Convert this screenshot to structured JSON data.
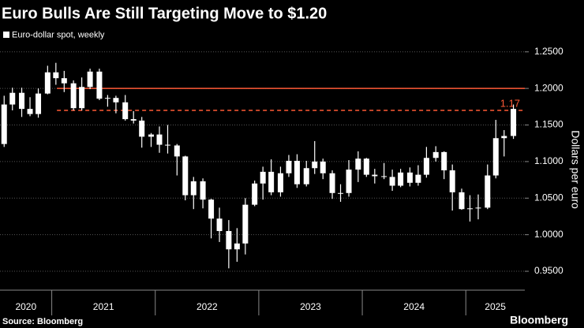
{
  "chart_data": {
    "type": "candlestick",
    "title": "Euro Bulls Are Still Targeting Move to $1.20",
    "legend": "Euro-dollar spot, weekly",
    "y_label": "Dollars per euro",
    "source": "Source: Bloomberg",
    "brand": "Bloomberg",
    "color": "#ffffff",
    "grid": true,
    "xlim": [
      2020.5,
      2025.57
    ],
    "xticks": [
      {
        "value": 2020,
        "label": "2020"
      },
      {
        "value": 2021,
        "label": "2021"
      },
      {
        "value": 2022,
        "label": "2022"
      },
      {
        "value": 2023,
        "label": "2023"
      },
      {
        "value": 2024,
        "label": "2024"
      },
      {
        "value": 2025,
        "label": "2025"
      }
    ],
    "ylim": [
      0.93,
      1.267
    ],
    "yticks": [
      {
        "value": 0.95,
        "label": "0.9500"
      },
      {
        "value": 1.0,
        "label": "1.0000"
      },
      {
        "value": 1.05,
        "label": "1.0500"
      },
      {
        "value": 1.1,
        "label": "1.1000"
      },
      {
        "value": 1.15,
        "label": "1.1500"
      },
      {
        "value": 1.2,
        "label": "1.2000"
      },
      {
        "value": 1.25,
        "label": "1.2500"
      }
    ],
    "reference_lines": [
      {
        "value": 1.2,
        "from": 2021.05,
        "style": "solid",
        "color": "#ff5a36"
      },
      {
        "value": 1.17,
        "from": 2021.05,
        "style": "dashed",
        "color": "#ff5a36",
        "label": "1.17"
      }
    ],
    "x": [
      2020.54,
      2020.62,
      2020.71,
      2020.79,
      2020.87,
      2020.96,
      2021.04,
      2021.12,
      2021.21,
      2021.29,
      2021.37,
      2021.46,
      2021.54,
      2021.62,
      2021.71,
      2021.79,
      2021.87,
      2021.96,
      2022.04,
      2022.12,
      2022.21,
      2022.29,
      2022.37,
      2022.46,
      2022.54,
      2022.62,
      2022.71,
      2022.79,
      2022.87,
      2022.96,
      2023.04,
      2023.12,
      2023.21,
      2023.29,
      2023.37,
      2023.46,
      2023.54,
      2023.62,
      2023.71,
      2023.79,
      2023.87,
      2023.96,
      2024.04,
      2024.12,
      2024.21,
      2024.29,
      2024.37,
      2024.46,
      2024.54,
      2024.62,
      2024.71,
      2024.79,
      2024.87,
      2024.96,
      2025.04,
      2025.12,
      2025.21,
      2025.29,
      2025.37,
      2025.46
    ],
    "open": [
      1.124,
      1.178,
      1.194,
      1.172,
      1.165,
      1.193,
      1.222,
      1.214,
      1.207,
      1.173,
      1.202,
      1.223,
      1.186,
      1.187,
      1.181,
      1.158,
      1.156,
      1.134,
      1.137,
      1.123,
      1.122,
      1.107,
      1.054,
      1.073,
      1.048,
      1.022,
      1.005,
      0.98,
      0.988,
      1.041,
      1.07,
      1.086,
      1.058,
      1.084,
      1.101,
      1.069,
      1.091,
      1.1,
      1.084,
      1.057,
      1.057,
      1.089,
      1.104,
      1.082,
      1.08,
      1.079,
      1.067,
      1.085,
      1.071,
      1.082,
      1.105,
      1.113,
      1.088,
      1.058,
      1.035,
      1.036,
      1.037,
      1.081,
      1.132,
      1.135
    ],
    "high": [
      1.19,
      1.201,
      1.201,
      1.188,
      1.2,
      1.231,
      1.235,
      1.224,
      1.211,
      1.215,
      1.227,
      1.227,
      1.191,
      1.19,
      1.191,
      1.169,
      1.161,
      1.139,
      1.148,
      1.15,
      1.124,
      1.108,
      1.079,
      1.077,
      1.049,
      1.037,
      1.02,
      1.009,
      1.05,
      1.074,
      1.093,
      1.103,
      1.093,
      1.109,
      1.11,
      1.101,
      1.128,
      1.104,
      1.088,
      1.069,
      1.102,
      1.114,
      1.105,
      1.09,
      1.098,
      1.089,
      1.09,
      1.092,
      1.095,
      1.12,
      1.121,
      1.114,
      1.096,
      1.063,
      1.054,
      1.055,
      1.096,
      1.157,
      1.143,
      1.178
    ],
    "low": [
      1.12,
      1.17,
      1.161,
      1.162,
      1.16,
      1.192,
      1.205,
      1.195,
      1.17,
      1.17,
      1.199,
      1.184,
      1.175,
      1.166,
      1.156,
      1.152,
      1.119,
      1.12,
      1.112,
      1.111,
      1.081,
      1.047,
      1.035,
      1.036,
      0.995,
      0.99,
      0.954,
      0.963,
      0.973,
      1.039,
      1.048,
      1.054,
      1.052,
      1.079,
      1.064,
      1.066,
      1.083,
      1.076,
      1.049,
      1.045,
      1.052,
      1.072,
      1.079,
      1.07,
      1.076,
      1.06,
      1.065,
      1.066,
      1.067,
      1.078,
      1.1,
      1.076,
      1.033,
      1.034,
      1.018,
      1.021,
      1.035,
      1.077,
      1.107,
      1.131
    ],
    "close": [
      1.178,
      1.194,
      1.172,
      1.165,
      1.193,
      1.222,
      1.214,
      1.207,
      1.173,
      1.202,
      1.223,
      1.186,
      1.187,
      1.181,
      1.158,
      1.156,
      1.134,
      1.137,
      1.123,
      1.122,
      1.107,
      1.054,
      1.073,
      1.048,
      1.022,
      1.005,
      0.98,
      0.988,
      1.041,
      1.07,
      1.086,
      1.058,
      1.084,
      1.101,
      1.069,
      1.091,
      1.1,
      1.084,
      1.057,
      1.057,
      1.089,
      1.104,
      1.082,
      1.08,
      1.079,
      1.067,
      1.085,
      1.071,
      1.082,
      1.105,
      1.113,
      1.088,
      1.058,
      1.035,
      1.036,
      1.037,
      1.081,
      1.132,
      1.135,
      1.172
    ]
  }
}
